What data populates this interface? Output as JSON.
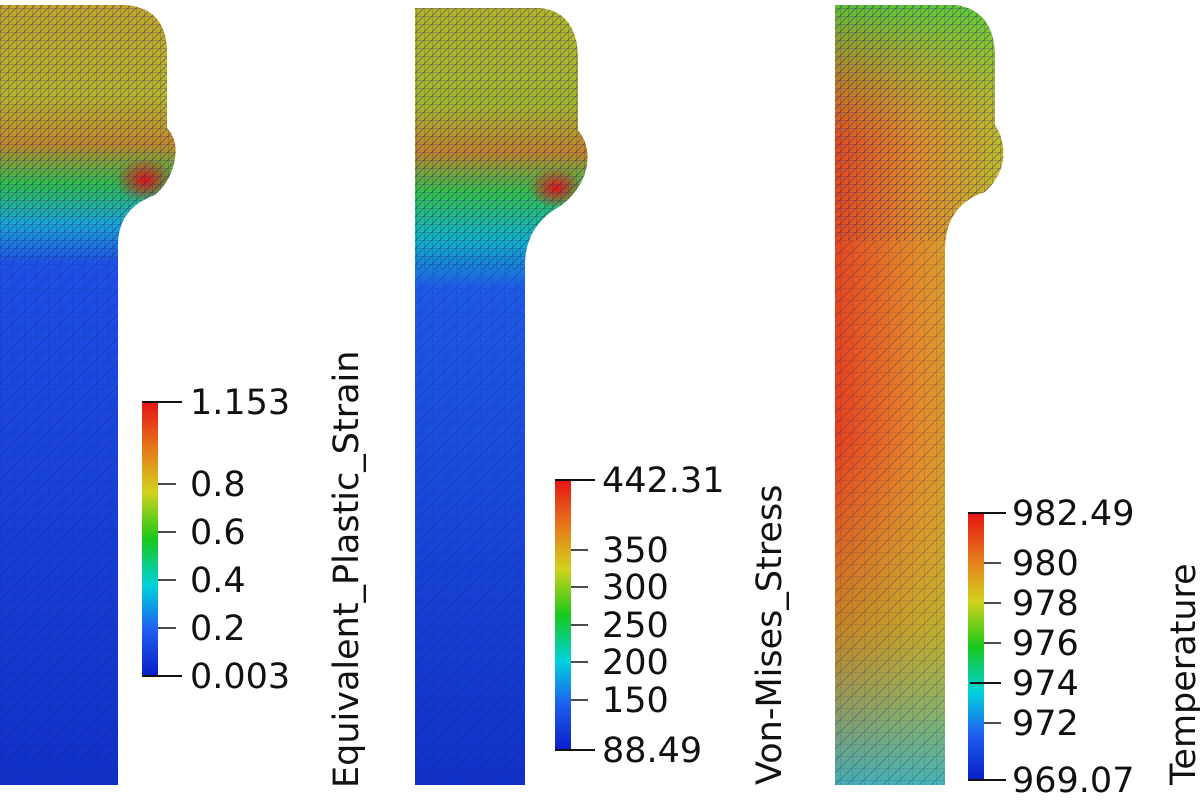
{
  "panels": [
    {
      "field": "Equivalent_Plastic_Strain",
      "colorbar": {
        "max_label": "1.153",
        "min_label": "0.003",
        "tick_labels": [
          "0.8",
          "0.6",
          "0.4",
          "0.2"
        ]
      }
    },
    {
      "field": "Von-Mises_Stress",
      "colorbar": {
        "max_label": "442.31",
        "min_label": "88.49",
        "tick_labels": [
          "350",
          "300",
          "250",
          "200",
          "150"
        ]
      }
    },
    {
      "field": "Temperature",
      "colorbar": {
        "max_label": "982.49",
        "min_label": "969.07",
        "tick_labels": [
          "980",
          "978",
          "976",
          "974",
          "972"
        ]
      }
    }
  ],
  "colors": {
    "colormap": [
      "#0a1ec8",
      "#1e5ff0",
      "#00d2dc",
      "#19c819",
      "#d2d21e",
      "#e67819",
      "#e61414"
    ],
    "mesh_line": "#1a1a6e",
    "text": "#111111"
  }
}
